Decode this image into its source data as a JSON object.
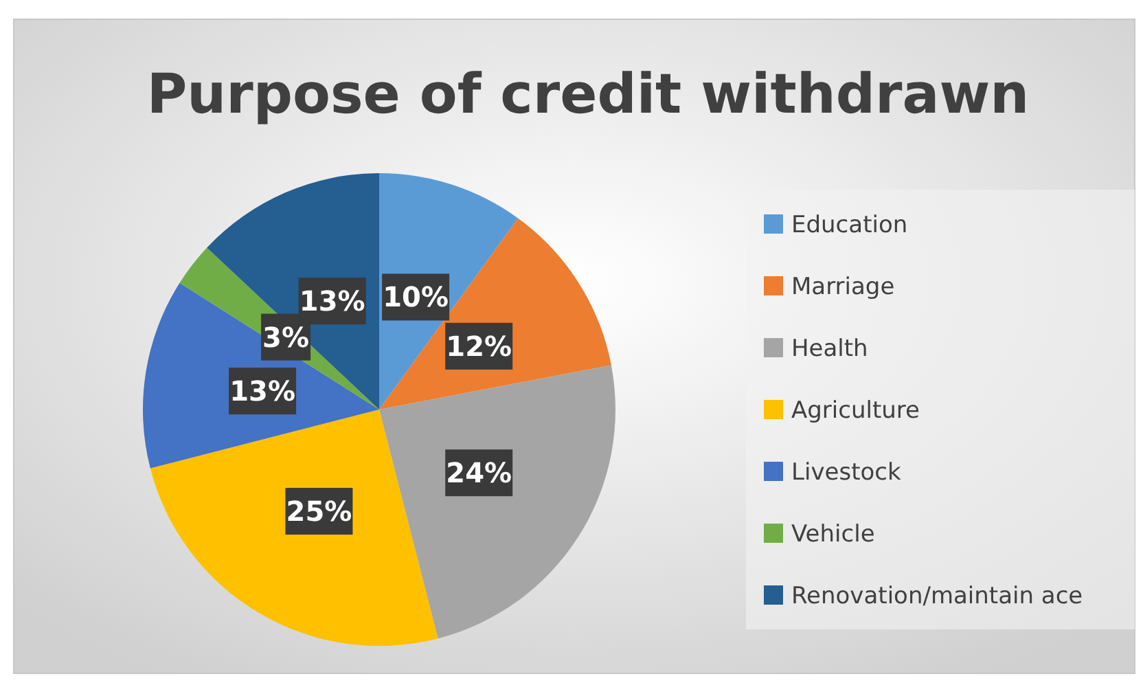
{
  "chart_data": {
    "type": "pie",
    "title": "Purpose of credit withdrawn",
    "categories": [
      "Education",
      "Marriage",
      "Health",
      "Agriculture",
      "Livestock",
      "Vehicle",
      "Renovation/maintain ace"
    ],
    "values": [
      10,
      12,
      24,
      25,
      13,
      3,
      13
    ],
    "value_labels": [
      "10%",
      "12%",
      "24%",
      "25%",
      "13%",
      "3%",
      "13%"
    ],
    "colors": [
      "#5b9bd5",
      "#ed7d31",
      "#a5a5a5",
      "#ffc000",
      "#4472c4",
      "#70ad47",
      "#255e91"
    ],
    "legend": "right"
  }
}
